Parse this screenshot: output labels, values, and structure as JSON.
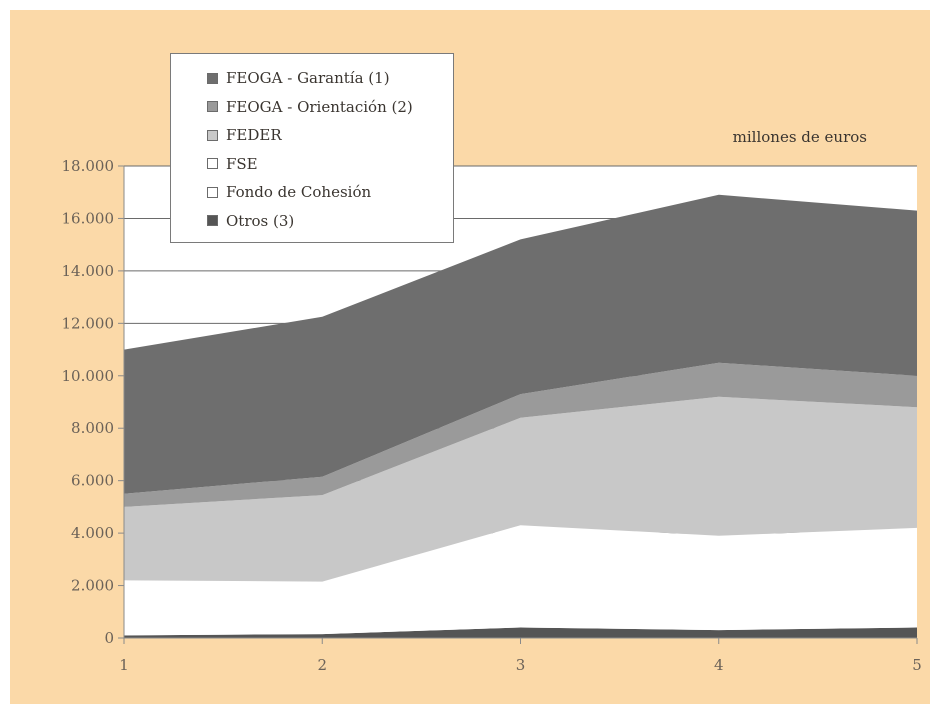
{
  "chart_data": {
    "type": "area",
    "stacked": true,
    "title": "",
    "unit_label": "millones de euros",
    "xlabel": "",
    "ylabel": "",
    "x": [
      1,
      2,
      3,
      4,
      5
    ],
    "x_tick_labels": [
      "1",
      "2",
      "3",
      "4",
      "5"
    ],
    "ylim": [
      0,
      18000
    ],
    "y_ticks": [
      0,
      2000,
      4000,
      6000,
      8000,
      10000,
      12000,
      14000,
      16000,
      18000
    ],
    "y_tick_labels": [
      "0",
      "2.000",
      "4.000",
      "6.000",
      "8.000",
      "10.000",
      "12.000",
      "14.000",
      "16.000",
      "18.000"
    ],
    "grid": "horizontal",
    "legend_position": "top-left",
    "series": [
      {
        "name": "FEOGA - Garantía (1)",
        "values": [
          5500,
          6100,
          5900,
          6400,
          6300
        ],
        "color": "#6e6e6e"
      },
      {
        "name": "FEOGA - Orientación (2)",
        "values": [
          500,
          700,
          900,
          1300,
          1200
        ],
        "color": "#9a9a9a"
      },
      {
        "name": "FEDER",
        "values": [
          2800,
          3300,
          4100,
          5300,
          4600
        ],
        "color": "#c8c8c8"
      },
      {
        "name": "FSE",
        "values": [
          2100,
          2000,
          3900,
          3600,
          3800
        ],
        "color": "#ffffff"
      },
      {
        "name": "Fondo de Cohesión",
        "values": [
          0,
          0,
          0,
          0,
          0
        ],
        "color": "#ffffff"
      },
      {
        "name": "Otros (3)",
        "values": [
          100,
          150,
          400,
          300,
          400
        ],
        "color": "#555555"
      }
    ],
    "colors": {
      "page_background": "#fbd9a8",
      "plot_background": "#ffffff",
      "axis": "#8a8a8a",
      "grid": "#6a6a6a"
    }
  }
}
